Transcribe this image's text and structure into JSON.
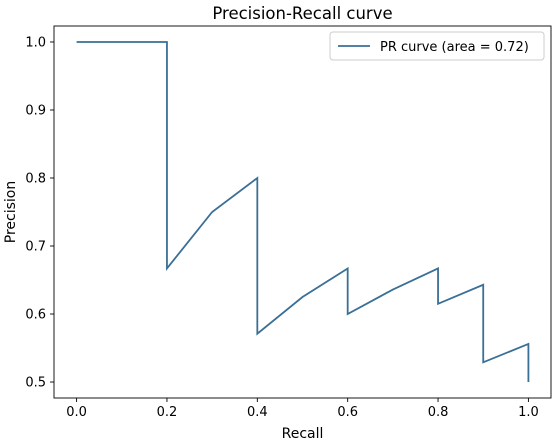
{
  "chart_data": {
    "type": "line",
    "title": "Precision-Recall curve",
    "xlabel": "Recall",
    "ylabel": "Precision",
    "xlim": [
      -0.05,
      1.05
    ],
    "ylim": [
      0.4765,
      1.0235
    ],
    "x_ticks": [
      0.0,
      0.2,
      0.4,
      0.6,
      0.8,
      1.0
    ],
    "x_tick_labels": [
      "0.0",
      "0.2",
      "0.4",
      "0.6",
      "0.8",
      "1.0"
    ],
    "y_ticks": [
      0.5,
      0.6,
      0.7,
      0.8,
      0.9,
      1.0
    ],
    "y_tick_labels": [
      "0.5",
      "0.6",
      "0.7",
      "0.8",
      "0.9",
      "1.0"
    ],
    "grid": false,
    "legend_position": "top-right",
    "series": [
      {
        "name": "PR curve (area = 0.72)",
        "color": "#3a6f96",
        "x": [
          0.0,
          0.2,
          0.2,
          0.3,
          0.4,
          0.4,
          0.5,
          0.6,
          0.6,
          0.7,
          0.8,
          0.8,
          0.9,
          0.9,
          1.0,
          1.0
        ],
        "y": [
          1.0,
          1.0,
          0.667,
          0.75,
          0.8,
          0.571,
          0.625,
          0.667,
          0.6,
          0.636,
          0.667,
          0.615,
          0.643,
          0.529,
          0.556,
          0.5
        ]
      }
    ]
  }
}
